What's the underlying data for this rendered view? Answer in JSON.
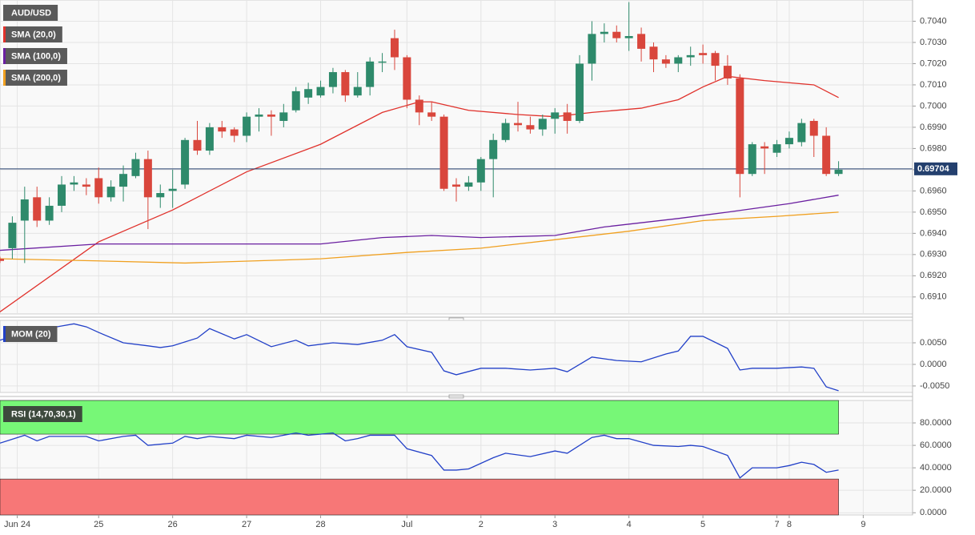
{
  "chart_data": [
    {
      "type": "candlestick",
      "title": "AUD/USD",
      "x": [
        0,
        1,
        2,
        3,
        4,
        5,
        6,
        7,
        8,
        9,
        10,
        11,
        12,
        13,
        14,
        15,
        16,
        17,
        18,
        19,
        20,
        21,
        22,
        23,
        24,
        25,
        26,
        27,
        28,
        29,
        30,
        31,
        32,
        33,
        34,
        35,
        36,
        37,
        38,
        39,
        40,
        41,
        42,
        43,
        44,
        45,
        46,
        47,
        48,
        49,
        50,
        51,
        52,
        53,
        54,
        55,
        56,
        57,
        58,
        59,
        60,
        61,
        62,
        63,
        64,
        65,
        66,
        67,
        68
      ],
      "open": [
        0.6928,
        0.6933,
        0.6946,
        0.6957,
        0.6946,
        0.6953,
        0.6963,
        0.6963,
        0.6966,
        0.6957,
        0.6962,
        0.6967,
        0.6975,
        0.6957,
        0.696,
        0.6963,
        0.6984,
        0.6979,
        0.699,
        0.6989,
        0.6986,
        0.6995,
        0.6996,
        0.6993,
        0.6998,
        0.7004,
        0.7005,
        0.7009,
        0.7016,
        0.7005,
        0.7009,
        0.7021,
        0.7032,
        0.7023,
        0.7003,
        0.6997,
        0.6995,
        0.6963,
        0.6962,
        0.6964,
        0.6975,
        0.6984,
        0.6992,
        0.6991,
        0.6989,
        0.6994,
        0.6997,
        0.6993,
        0.702,
        0.7034,
        0.7035,
        0.7032,
        0.7034,
        0.7028,
        0.7022,
        0.702,
        0.7023,
        0.7025,
        0.7025,
        0.7019,
        0.7013,
        0.6968,
        0.6981,
        0.6978,
        0.6982,
        0.6983,
        0.6993,
        0.6986,
        0.6968
      ],
      "high": [
        0.6929,
        0.6948,
        0.6962,
        0.6962,
        0.6957,
        0.6967,
        0.6967,
        0.6966,
        0.6971,
        0.6965,
        0.6972,
        0.6978,
        0.6979,
        0.6963,
        0.697,
        0.6985,
        0.6993,
        0.6992,
        0.6993,
        0.699,
        0.6997,
        0.6999,
        0.6998,
        0.7001,
        0.7009,
        0.7011,
        0.7012,
        0.7018,
        0.7017,
        0.7016,
        0.7023,
        0.7025,
        0.7036,
        0.7024,
        0.7005,
        0.7002,
        0.6996,
        0.6966,
        0.6967,
        0.6976,
        0.6987,
        0.6994,
        0.7002,
        0.6995,
        0.6996,
        0.6999,
        0.7001,
        0.7024,
        0.704,
        0.7039,
        0.7038,
        0.7049,
        0.7037,
        0.703,
        0.7024,
        0.7024,
        0.7028,
        0.7029,
        0.7026,
        0.7024,
        0.7015,
        0.6983,
        0.6983,
        0.6984,
        0.6988,
        0.6994,
        0.6994,
        0.699,
        0.6974
      ],
      "low": [
        0.6926,
        0.6928,
        0.6926,
        0.6943,
        0.6944,
        0.695,
        0.696,
        0.6958,
        0.6954,
        0.6955,
        0.6955,
        0.6966,
        0.6942,
        0.6952,
        0.6952,
        0.6961,
        0.6977,
        0.6977,
        0.6985,
        0.6983,
        0.6983,
        0.6988,
        0.6986,
        0.699,
        0.6997,
        0.7001,
        0.7004,
        0.7006,
        0.7002,
        0.7004,
        0.7005,
        0.7016,
        0.7017,
        0.6999,
        0.6991,
        0.6993,
        0.696,
        0.6955,
        0.696,
        0.696,
        0.6957,
        0.6983,
        0.6988,
        0.6987,
        0.6986,
        0.6987,
        0.6987,
        0.6992,
        0.7012,
        0.703,
        0.703,
        0.7026,
        0.7021,
        0.7016,
        0.7018,
        0.7016,
        0.7019,
        0.702,
        0.7012,
        0.701,
        0.6957,
        0.6967,
        0.6968,
        0.6976,
        0.698,
        0.6981,
        0.6976,
        0.6967,
        0.6967
      ],
      "close": [
        0.6927,
        0.6945,
        0.6956,
        0.6946,
        0.6953,
        0.6963,
        0.6964,
        0.6962,
        0.6957,
        0.6962,
        0.6968,
        0.6975,
        0.6957,
        0.6959,
        0.6961,
        0.6984,
        0.6979,
        0.699,
        0.6988,
        0.6986,
        0.6995,
        0.6996,
        0.6995,
        0.6997,
        0.7007,
        0.7008,
        0.7009,
        0.7016,
        0.7005,
        0.7009,
        0.7021,
        0.7021,
        0.7023,
        0.7003,
        0.6997,
        0.6995,
        0.6961,
        0.6962,
        0.6964,
        0.6975,
        0.6984,
        0.6992,
        0.6991,
        0.6989,
        0.6994,
        0.6997,
        0.6993,
        0.702,
        0.7034,
        0.7035,
        0.7032,
        0.7033,
        0.7027,
        0.7022,
        0.702,
        0.7023,
        0.7024,
        0.7024,
        0.7019,
        0.7013,
        0.6968,
        0.6982,
        0.698,
        0.6982,
        0.6985,
        0.6992,
        0.6986,
        0.6968,
        0.697
      ],
      "up_color": "#2e8a6b",
      "down_color": "#d9463c",
      "series": [
        {
          "name": "SMA (20,0)",
          "color": "#e0312b",
          "x": [
            0,
            8,
            14,
            20,
            26,
            31,
            34,
            35,
            38,
            42,
            45,
            48,
            52,
            55,
            57,
            59,
            62,
            66,
            68
          ],
          "values": [
            0.6903,
            0.6936,
            0.6951,
            0.6969,
            0.6982,
            0.6997,
            0.7002,
            0.7002,
            0.6998,
            0.6996,
            0.6995,
            0.6997,
            0.6999,
            0.7003,
            0.7009,
            0.7014,
            0.7012,
            0.701,
            0.7004
          ]
        },
        {
          "name": "SMA (100,0)",
          "color": "#6a1fa0",
          "x": [
            0,
            8,
            14,
            26,
            31,
            35,
            39,
            45,
            49,
            55,
            59,
            64,
            68
          ],
          "values": [
            0.6932,
            0.6935,
            0.6935,
            0.6935,
            0.6938,
            0.6939,
            0.6938,
            0.6939,
            0.6943,
            0.6947,
            0.695,
            0.6954,
            0.6958
          ]
        },
        {
          "name": "SMA (200,0)",
          "color": "#f0a020",
          "x": [
            0,
            8,
            15,
            26,
            33,
            39,
            45,
            51,
            57,
            63,
            68
          ],
          "values": [
            0.6928,
            0.6927,
            0.6926,
            0.6928,
            0.6931,
            0.6933,
            0.6937,
            0.6941,
            0.6946,
            0.6948,
            0.695
          ]
        }
      ],
      "last_price": 0.69704,
      "last_price_color": "#24406e",
      "ylim": [
        0.6902,
        0.705
      ],
      "yticks": [
        {
          "value": 0.691,
          "label": "0.6910"
        },
        {
          "value": 0.692,
          "label": "0.6920"
        },
        {
          "value": 0.693,
          "label": "0.6930"
        },
        {
          "value": 0.694,
          "label": "0.6940"
        },
        {
          "value": 0.695,
          "label": "0.6950"
        },
        {
          "value": 0.696,
          "label": "0.6960"
        },
        {
          "value": 0.697,
          "label": "0.6970"
        },
        {
          "value": 0.698,
          "label": "0.6980"
        },
        {
          "value": 0.699,
          "label": "0.6990"
        },
        {
          "value": 0.7,
          "label": "0.7000"
        },
        {
          "value": 0.701,
          "label": "0.7010"
        },
        {
          "value": 0.702,
          "label": "0.7020"
        },
        {
          "value": 0.703,
          "label": "0.7030"
        },
        {
          "value": 0.704,
          "label": "0.7040"
        }
      ],
      "xlim": [
        0,
        74
      ],
      "xticks": [
        {
          "value": 1.4,
          "label": "Jun 24"
        },
        {
          "value": 8,
          "label": "25"
        },
        {
          "value": 14,
          "label": "26"
        },
        {
          "value": 20,
          "label": "27"
        },
        {
          "value": 26,
          "label": "28"
        },
        {
          "value": 33,
          "label": "Jul"
        },
        {
          "value": 39,
          "label": "2"
        },
        {
          "value": 45,
          "label": "3"
        },
        {
          "value": 51,
          "label": "4"
        },
        {
          "value": 57,
          "label": "5"
        },
        {
          "value": 63,
          "label": "7"
        },
        {
          "value": 64,
          "label": "8"
        },
        {
          "value": 70,
          "label": "9"
        }
      ],
      "grid": true
    },
    {
      "type": "line",
      "series": [
        {
          "name": "MOM (20)",
          "color": "#2240c8",
          "x": [
            0,
            2,
            5,
            6,
            7,
            8,
            10,
            12,
            13,
            14,
            16,
            17,
            19,
            20,
            22,
            24,
            25,
            27,
            29,
            31,
            32,
            33,
            35,
            36,
            37,
            39,
            41,
            43,
            45,
            46,
            48,
            50,
            52,
            54,
            55,
            56,
            57,
            59,
            60,
            61,
            63,
            65,
            66,
            67,
            68
          ],
          "values": [
            0.0056,
            0.0074,
            0.0089,
            0.0094,
            0.0087,
            0.0074,
            0.005,
            0.0043,
            0.0039,
            0.0043,
            0.0061,
            0.0083,
            0.0059,
            0.0069,
            0.0041,
            0.0056,
            0.0043,
            0.005,
            0.0046,
            0.0056,
            0.0069,
            0.0041,
            0.0028,
            -0.0015,
            -0.0024,
            -0.0009,
            -0.0009,
            -0.0013,
            -0.0009,
            -0.0017,
            0.0017,
            0.0009,
            0.0006,
            0.0024,
            0.0031,
            0.0065,
            0.0065,
            0.0037,
            -0.0013,
            -0.0009,
            -0.0009,
            -0.0006,
            -0.0009,
            -0.0052,
            -0.0061
          ]
        }
      ],
      "ylim": [
        -0.0065,
        0.0102
      ],
      "yticks": [
        {
          "value": -0.005,
          "label": "-0.0050"
        },
        {
          "value": 0,
          "label": "0.0000"
        },
        {
          "value": 0.005,
          "label": "0.0050"
        }
      ],
      "grid": true
    },
    {
      "type": "line",
      "series": [
        {
          "name": "RSI (14,70,30,1)",
          "color": "#2240c8",
          "x": [
            0,
            2,
            3,
            4,
            5,
            7,
            8,
            10,
            11,
            12,
            14,
            15,
            16,
            17,
            19,
            20,
            22,
            24,
            25,
            27,
            28,
            29,
            30,
            32,
            33,
            35,
            36,
            37,
            38,
            40,
            41,
            43,
            45,
            46,
            48,
            49,
            50,
            51,
            53,
            55,
            56,
            57,
            59,
            60,
            61,
            63,
            64,
            65,
            66,
            67,
            68
          ],
          "values": [
            62,
            69,
            64,
            68,
            68,
            68,
            64,
            68,
            69,
            60,
            62,
            68,
            66,
            68,
            66,
            69,
            67,
            71,
            69,
            71,
            64,
            66,
            69,
            69,
            57,
            51,
            38,
            38,
            39,
            49,
            53,
            50,
            55,
            53,
            67,
            69,
            66,
            66,
            60,
            59,
            60,
            59,
            51,
            31,
            40,
            40,
            42,
            45,
            43,
            36,
            38
          ]
        }
      ],
      "overbought": 70,
      "oversold": 30,
      "overbought_color": "#77f777",
      "oversold_color": "#f77777",
      "ylim": [
        -2,
        100
      ],
      "yticks": [
        {
          "value": 0,
          "label": "0.0000"
        },
        {
          "value": 20,
          "label": "20.0000"
        },
        {
          "value": 40,
          "label": "40.0000"
        },
        {
          "value": 60,
          "label": "60.0000"
        },
        {
          "value": 80,
          "label": "80.0000"
        }
      ],
      "grid": true
    }
  ]
}
